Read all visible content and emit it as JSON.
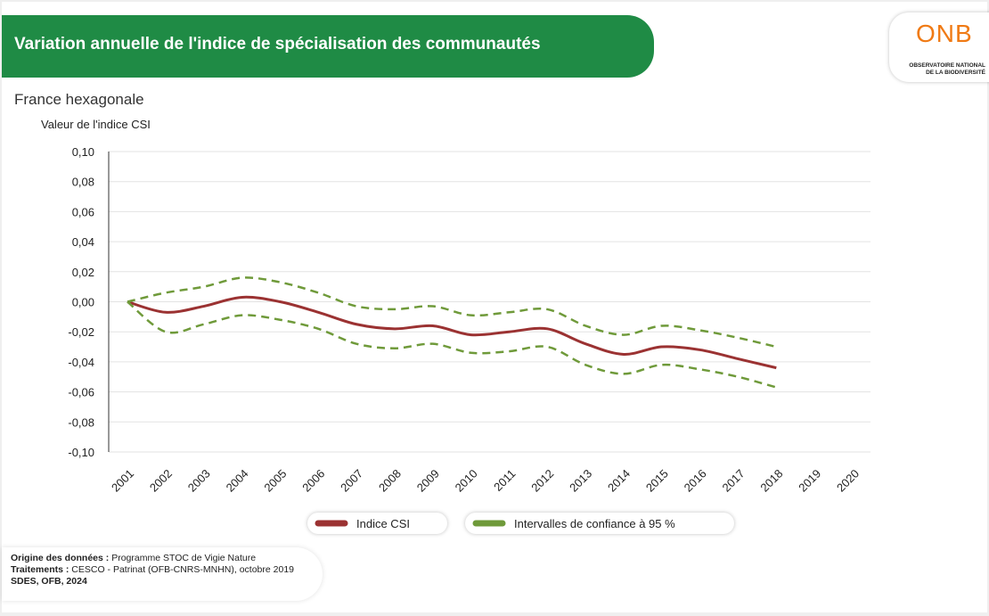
{
  "header": {
    "title": "Variation annuelle de l'indice de spécialisation des communautés"
  },
  "logo": {
    "name": "ONB",
    "line1": "OBSERVATOIRE NATIONAL",
    "line2": "DE LA BIODIVERSITÉ"
  },
  "subtitle": "France hexagonale",
  "chart_data": {
    "type": "line",
    "y_label": "Valeur de l'indice CSI",
    "categories": [
      "2001",
      "2002",
      "2003",
      "2004",
      "2005",
      "2006",
      "2007",
      "2008",
      "2009",
      "2010",
      "2011",
      "2012",
      "2013",
      "2014",
      "2015",
      "2016",
      "2017",
      "2018",
      "2019",
      "2020"
    ],
    "series": [
      {
        "name": "Indice CSI",
        "color": "#9b3232",
        "values": [
          0,
          -0.007,
          -0.003,
          0.003,
          0.0,
          -0.007,
          -0.015,
          -0.018,
          -0.016,
          -0.022,
          -0.02,
          -0.018,
          -0.028,
          -0.035,
          -0.03,
          -0.032,
          -0.038,
          -0.044,
          null,
          null
        ]
      },
      {
        "name": "Intervalles de confiance à 95 %",
        "color": "#6f9a3a",
        "dashed": true,
        "upper": [
          0,
          0.006,
          0.01,
          0.016,
          0.013,
          0.006,
          -0.003,
          -0.005,
          -0.003,
          -0.009,
          -0.007,
          -0.005,
          -0.016,
          -0.022,
          -0.016,
          -0.019,
          -0.024,
          -0.03,
          null,
          null
        ],
        "lower": [
          0,
          -0.02,
          -0.015,
          -0.009,
          -0.012,
          -0.018,
          -0.028,
          -0.031,
          -0.028,
          -0.034,
          -0.033,
          -0.03,
          -0.042,
          -0.048,
          -0.042,
          -0.045,
          -0.05,
          -0.057,
          null,
          null
        ]
      }
    ],
    "ylim": [
      -0.1,
      0.1
    ],
    "yticks": [
      {
        "value": -0.1,
        "label": "-0,10"
      },
      {
        "value": -0.08,
        "label": "-0,08"
      },
      {
        "value": -0.06,
        "label": "-0,06"
      },
      {
        "value": -0.04,
        "label": "-0,04"
      },
      {
        "value": -0.02,
        "label": "-0,02"
      },
      {
        "value": 0,
        "label": "0,00"
      },
      {
        "value": 0.02,
        "label": "0,02"
      },
      {
        "value": 0.04,
        "label": "0,04"
      },
      {
        "value": 0.06,
        "label": "0,06"
      },
      {
        "value": 0.08,
        "label": "0,08"
      },
      {
        "value": 0.1,
        "label": "0,10"
      }
    ],
    "grid": true
  },
  "source": {
    "l1_label": "Origine des données :",
    "l1_text": "Programme STOC de Vigie Nature",
    "l2_label": "Traitements :",
    "l2_text": "CESCO - Patrinat (OFB-CNRS-MNHN), octobre 2019",
    "l3": "SDES, OFB, 2024"
  }
}
